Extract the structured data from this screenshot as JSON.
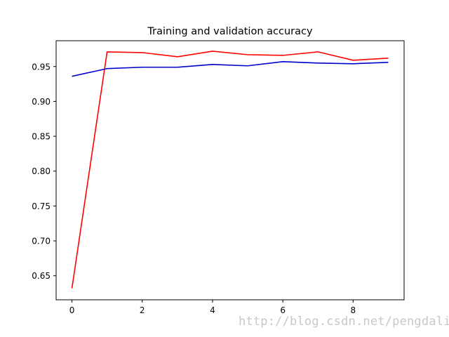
{
  "chart_data": {
    "type": "line",
    "title": "Training and validation accuracy",
    "xlabel": "",
    "ylabel": "",
    "xlim": [
      -0.45,
      9.45
    ],
    "ylim": [
      0.6155,
      0.987
    ],
    "x_ticks": [
      0,
      2,
      4,
      6,
      8
    ],
    "y_ticks": [
      0.65,
      0.7,
      0.75,
      0.8,
      0.85,
      0.9,
      0.95
    ],
    "y_tick_labels": [
      "0.65",
      "0.70",
      "0.75",
      "0.80",
      "0.85",
      "0.90",
      "0.95"
    ],
    "x_tick_labels": [
      "0",
      "2",
      "4",
      "6",
      "8"
    ],
    "grid": false,
    "x": [
      0,
      1,
      2,
      3,
      4,
      5,
      6,
      7,
      8,
      9
    ],
    "series": [
      {
        "color": "#ff0000",
        "values": [
          0.632,
          0.971,
          0.97,
          0.964,
          0.972,
          0.967,
          0.966,
          0.971,
          0.959,
          0.962
        ]
      },
      {
        "color": "#0000cc",
        "values": [
          0.936,
          0.947,
          0.949,
          0.949,
          0.953,
          0.951,
          0.957,
          0.955,
          0.954,
          0.956
        ]
      }
    ]
  },
  "watermark": "http://blog.csdn.net/pengdali"
}
